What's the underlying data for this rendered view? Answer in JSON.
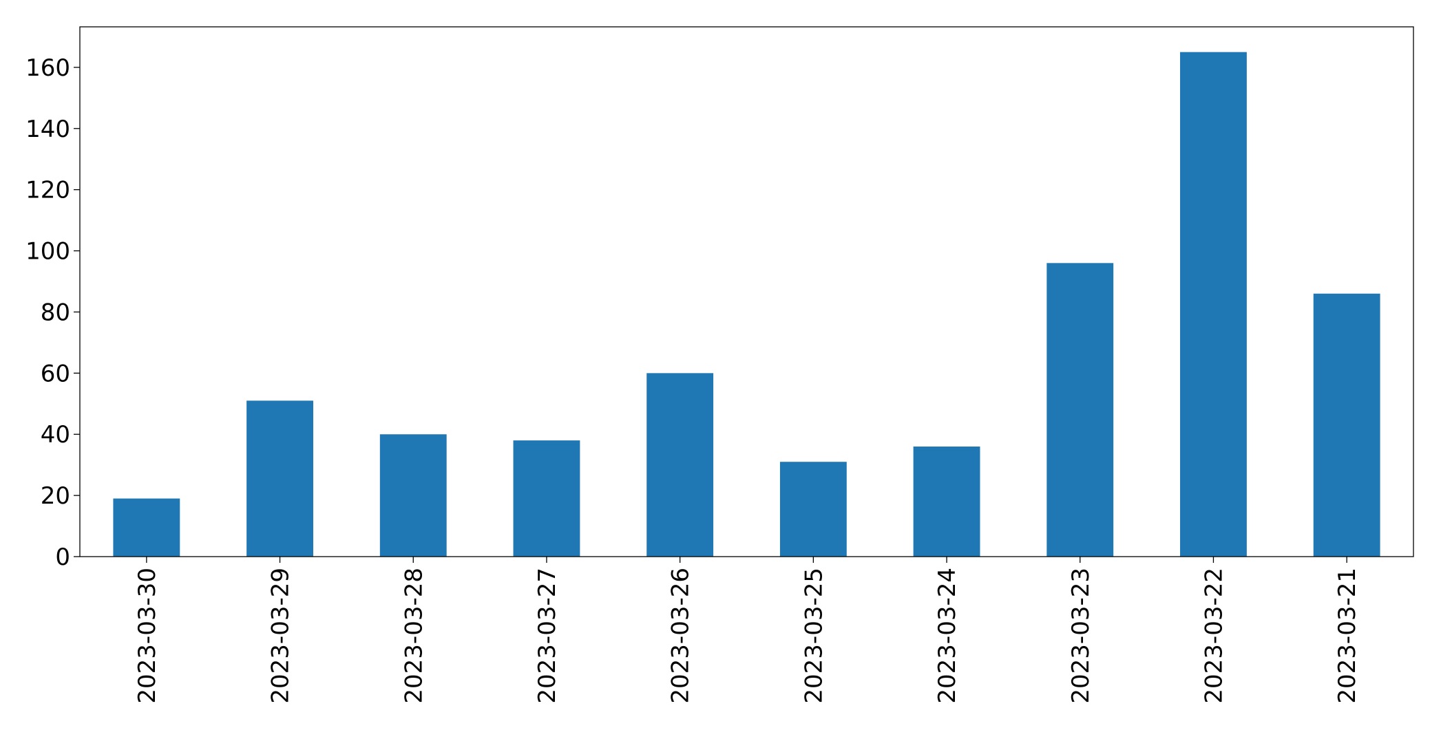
{
  "chart_data": {
    "type": "bar",
    "categories": [
      "2023-03-30",
      "2023-03-29",
      "2023-03-28",
      "2023-03-27",
      "2023-03-26",
      "2023-03-25",
      "2023-03-24",
      "2023-03-23",
      "2023-03-22",
      "2023-03-21"
    ],
    "values": [
      19,
      51,
      40,
      38,
      60,
      31,
      36,
      96,
      165,
      86
    ],
    "color": "#1f77b4",
    "ylim": [
      0,
      173.25
    ],
    "yticks": [
      0,
      20,
      40,
      60,
      80,
      100,
      120,
      140,
      160
    ],
    "grid": false
  }
}
